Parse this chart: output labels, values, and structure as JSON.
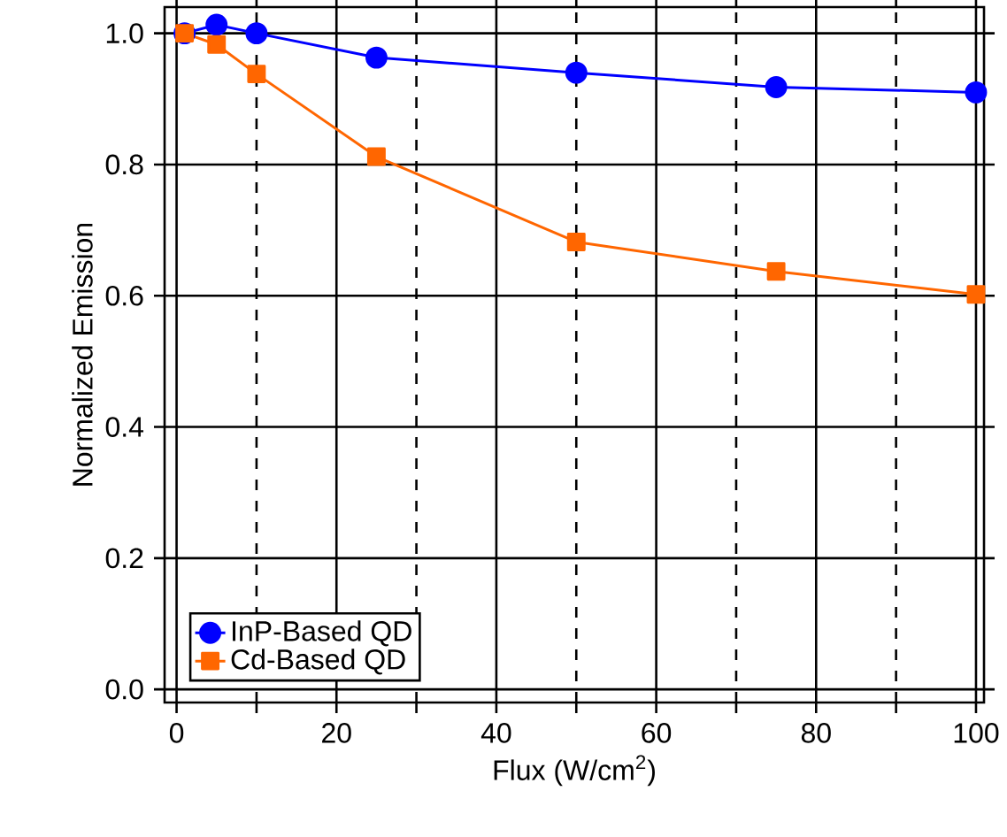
{
  "chart_data": {
    "type": "line",
    "xlabel": "Flux (W/cm$^{2}$)",
    "ylabel": "Normalized Emission",
    "x": [
      1,
      5,
      10,
      25,
      50,
      75,
      100
    ],
    "series": [
      {
        "name": "InP-Based QD",
        "color": "#0000ff",
        "marker": "circle",
        "values": [
          1.0,
          1.013,
          1.0,
          0.963,
          0.94,
          0.918,
          0.91
        ]
      },
      {
        "name": "Cd-Based QD",
        "color": "#ff6600",
        "marker": "square",
        "values": [
          1.0,
          0.983,
          0.938,
          0.812,
          0.682,
          0.637,
          0.602
        ]
      }
    ],
    "xlim": [
      -1.5,
      101
    ],
    "ylim": [
      -0.02,
      1.04
    ],
    "xticks": [
      0,
      {
        "value": 10,
        "label": null
      },
      20,
      {
        "value": 30,
        "label": null
      },
      40,
      {
        "value": 50,
        "label": null
      },
      60,
      {
        "value": 70,
        "label": null
      },
      80,
      {
        "value": 90,
        "label": null
      },
      100
    ],
    "yticks": [
      {
        "value": 0,
        "label": "0.0"
      },
      0.2,
      0.4,
      0.6,
      0.8,
      {
        "value": 1,
        "label": "1.0"
      }
    ],
    "grid": true,
    "legend": "bottom left",
    "line_style": "solid"
  }
}
